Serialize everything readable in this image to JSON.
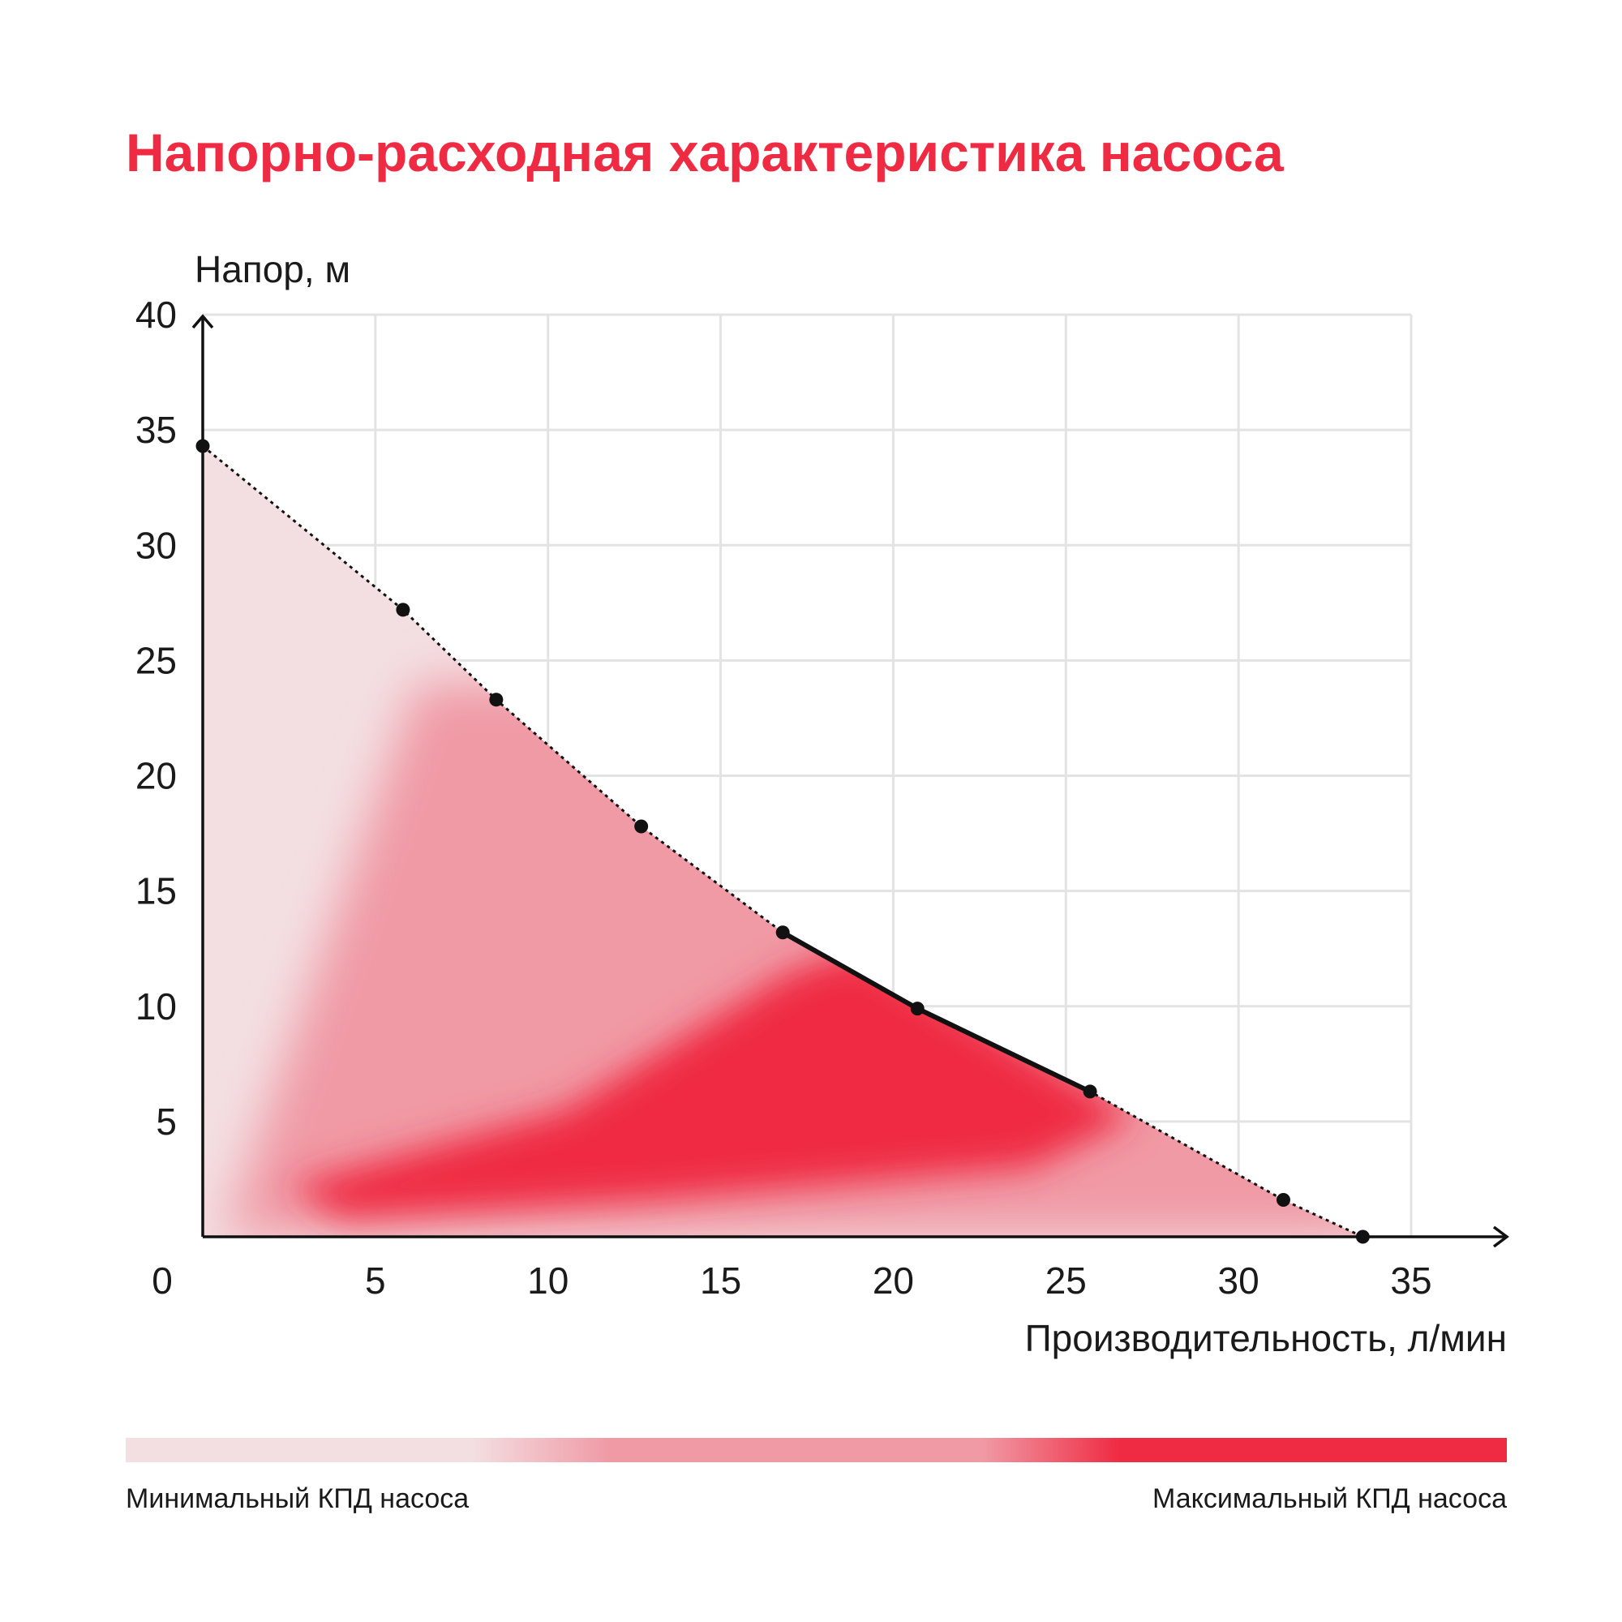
{
  "title": "Напорно-расходная характеристика насоса",
  "chart_data": {
    "type": "area",
    "title": "Напорно-расходная характеристика насоса",
    "xlabel": "Производительность, л/мин",
    "ylabel": "Напор, м",
    "xlim": [
      0,
      35
    ],
    "ylim": [
      0,
      40
    ],
    "x_ticks": [
      "0",
      "5",
      "10",
      "15",
      "20",
      "25",
      "30",
      "35"
    ],
    "y_ticks": [
      "5",
      "10",
      "15",
      "20",
      "25",
      "30",
      "35",
      "40"
    ],
    "grid": true,
    "series": [
      {
        "x": [
          0,
          5.8,
          8.5,
          12.7,
          16.8,
          20.7,
          25.7,
          31.3,
          33.6
        ],
        "y": [
          34.3,
          27.2,
          23.3,
          17.8,
          13.2,
          9.9,
          6.3,
          1.6,
          0
        ]
      }
    ],
    "optimal_range": {
      "x_from": 16.8,
      "x_to": 25.7
    },
    "efficiency_colors": {
      "min": "#f3dfe2",
      "mid": "#f09aa5",
      "max": "#ef2b43"
    },
    "legend": {
      "placement": "bottom",
      "min_label": "Минимальный КПД насоса",
      "max_label": "Максимальный КПД насоса"
    }
  }
}
